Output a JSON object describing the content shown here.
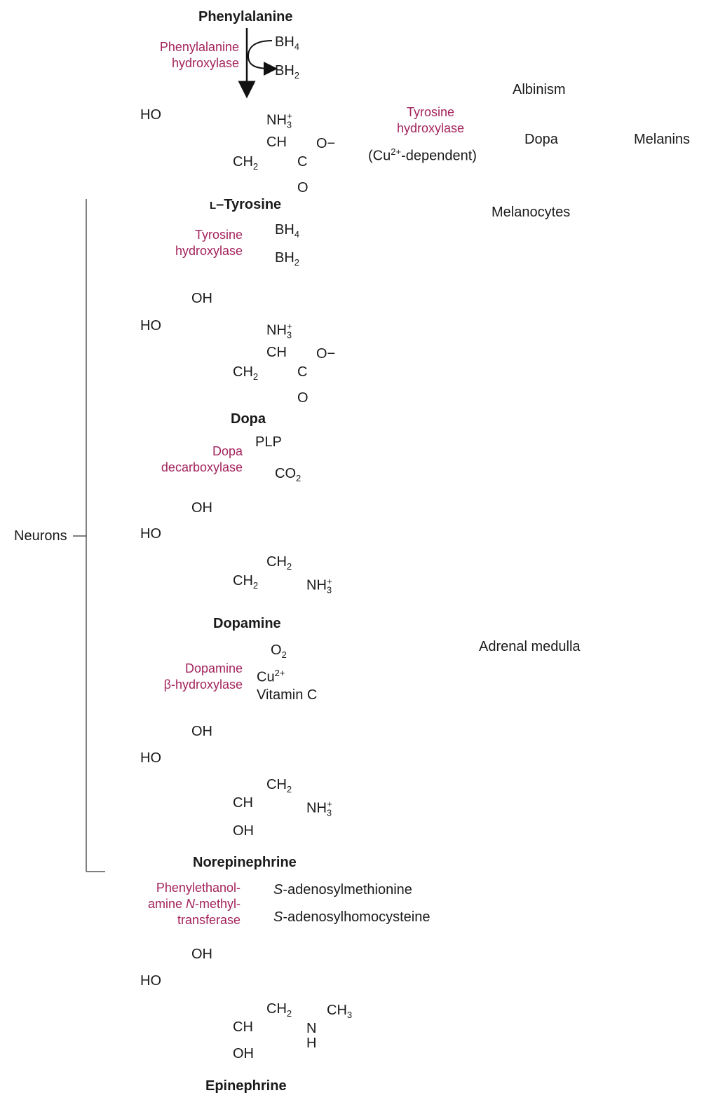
{
  "compounds": {
    "phenylalanine": "Phenylalanine",
    "tyrosine": "L-Tyrosine",
    "dopa": "Dopa",
    "dopamine": "Dopamine",
    "norepinephrine": "Norepinephrine",
    "epinephrine": "Epinephrine"
  },
  "enzymes": {
    "phe_hydroxylase_1": "Phenylalanine",
    "phe_hydroxylase_2": "hydroxylase",
    "tyr_hydroxylase_1": "Tyrosine",
    "tyr_hydroxylase_2": "hydroxylase",
    "tyr_hydroxylase_side_1": "Tyrosine",
    "tyr_hydroxylase_side_2": "hydroxylase",
    "dopa_decarboxylase_1": "Dopa",
    "dopa_decarboxylase_2": "decarboxylase",
    "dbh_1": "Dopamine",
    "dbh_2": "β-hydroxylase",
    "pnmt_1": "Phenylethanol-",
    "pnmt_2": "amine N-methyl-",
    "pnmt_3": "transferase"
  },
  "cofactors": {
    "bh4": "BH4",
    "bh2": "BH2",
    "bh4_b": "BH4",
    "bh2_b": "BH2",
    "plp": "PLP",
    "co2": "CO2",
    "o2": "O2",
    "cu": "Cu2+",
    "vitc": "Vitamin C",
    "cu_dependent": "(Cu2+-dependent)",
    "sam": "S-adenosylmethionine",
    "sah": "S-adenosylhomocysteine"
  },
  "atoms": {
    "ho": "HO",
    "oh": "OH",
    "nh3": "NH3+",
    "ch": "CH",
    "ch2": "CH2",
    "c": "C",
    "o": "O",
    "o_minus": "O−",
    "ch3": "CH3",
    "n": "N",
    "h": "H"
  },
  "locations": {
    "albinism": "Albinism",
    "dopa_side": "Dopa",
    "melanins": "Melanins",
    "melanocytes": "Melanocytes",
    "adrenal": "Adrenal medulla",
    "neurons": "Neurons"
  }
}
